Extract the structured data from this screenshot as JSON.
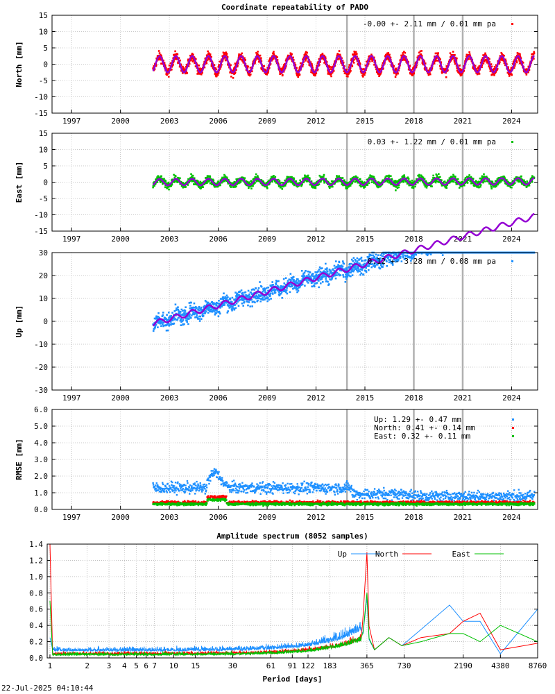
{
  "page": {
    "timestamp": "22-Jul-2025 04:10:44"
  },
  "chart_data": [
    {
      "type": "scatter",
      "title": "Coordinate repeatability of PADO",
      "ylabel": "North [mm]",
      "ylim": [
        -15,
        15
      ],
      "yticks": [
        -15,
        -10,
        -5,
        0,
        5,
        10,
        15
      ],
      "xlim": [
        1995.8,
        2025.6
      ],
      "xticks": [
        1997,
        2000,
        2003,
        2006,
        2009,
        2012,
        2015,
        2018,
        2021,
        2024
      ],
      "data_start": 2002.0,
      "data_end": 2025.4,
      "discontinuities": [
        2013.9,
        2018.0,
        2021.0
      ],
      "series": [
        {
          "name": "-0.00 +- 2.11 mm /  0.01 mm pa",
          "color": "#ff0000",
          "amplitude": 2.5,
          "noise": 1.3,
          "trend": 0.0,
          "offset": 0.0
        }
      ],
      "model_color": "#9400d3",
      "grid": true,
      "legend": "top-right"
    },
    {
      "type": "scatter",
      "title": "",
      "ylabel": "East [mm]",
      "ylim": [
        -15,
        15
      ],
      "yticks": [
        -15,
        -10,
        -5,
        0,
        5,
        10,
        15
      ],
      "xlim": [
        1995.8,
        2025.6
      ],
      "xticks": [
        1997,
        2000,
        2003,
        2006,
        2009,
        2012,
        2015,
        2018,
        2021,
        2024
      ],
      "data_start": 2002.0,
      "data_end": 2025.4,
      "discontinuities": [
        2013.9,
        2018.0,
        2021.0
      ],
      "series": [
        {
          "name": " 0.03 +- 1.22 mm /  0.01 mm pa",
          "color": "#00c000",
          "amplitude": 1.0,
          "noise": 1.0,
          "trend": 0.01,
          "offset": 0.0
        }
      ],
      "model_color": "#9400d3",
      "grid": true,
      "legend": "top-right"
    },
    {
      "type": "scatter",
      "title": "",
      "ylabel": "Up [mm]",
      "ylim": [
        -30,
        30
      ],
      "yticks": [
        -30,
        -20,
        -10,
        0,
        10,
        20,
        30
      ],
      "xlim": [
        1995.8,
        2025.6
      ],
      "xticks": [
        1997,
        2000,
        2003,
        2006,
        2009,
        2012,
        2015,
        2018,
        2021,
        2024
      ],
      "data_start": 2002.0,
      "data_end": 2025.4,
      "discontinuities": [
        2013.9,
        2018.0,
        2021.0
      ],
      "series": [
        {
          "name": " 0.12 +- 3.28 mm /  0.08 mm pa",
          "color": "#1e90ff",
          "amplitude": 1.2,
          "noise": 3.3,
          "trend": 0.08,
          "offset": -1.0
        }
      ],
      "model_color": "#9400d3",
      "grid": true,
      "legend": "top-right"
    },
    {
      "type": "scatter",
      "title": "",
      "ylabel": "RMSE [mm]",
      "ylim": [
        0,
        6
      ],
      "yticks": [
        0.0,
        1.0,
        2.0,
        3.0,
        4.0,
        5.0,
        6.0
      ],
      "ytick_labels": [
        "0.0",
        "1.0",
        "2.0",
        "3.0",
        "4.0",
        "5.0",
        "6.0"
      ],
      "xlim": [
        1995.8,
        2025.6
      ],
      "xticks": [
        1997,
        2000,
        2003,
        2006,
        2009,
        2012,
        2015,
        2018,
        2021,
        2024
      ],
      "data_start": 2002.0,
      "data_end": 2025.4,
      "discontinuities": [
        2013.9,
        2018.0,
        2021.0
      ],
      "series": [
        {
          "name": "Up:     1.29 +- 0.47 mm",
          "color": "#1e90ff",
          "level": 1.29,
          "spread": 0.47
        },
        {
          "name": "North:  0.41 +- 0.14 mm",
          "color": "#ff0000",
          "level": 0.41,
          "spread": 0.14
        },
        {
          "name": "East:   0.32 +- 0.11 mm",
          "color": "#00c000",
          "level": 0.32,
          "spread": 0.11
        }
      ],
      "grid": true,
      "legend": "top-right"
    },
    {
      "type": "line",
      "title": "Amplitude spectrum (8052 samples)",
      "xlabel": "Period [days]",
      "ylabel": "",
      "ylim": [
        0,
        1.4
      ],
      "yticks": [
        0.0,
        0.2,
        0.4,
        0.6,
        0.8,
        1.0,
        1.2,
        1.4
      ],
      "ytick_labels": [
        "0.0",
        "0.2",
        "0.4",
        "0.6",
        "0.8",
        "1.0",
        "1.2",
        "1.4"
      ],
      "xscale": "log",
      "xlim": [
        0.95,
        8760
      ],
      "xticks": [
        1,
        2,
        3,
        4,
        5,
        6,
        7,
        10,
        15,
        30,
        61,
        91,
        122,
        183,
        365,
        730,
        2190,
        4380,
        8760
      ],
      "xtick_labels": [
        "1",
        "2",
        "3",
        "4",
        "5",
        "6",
        "7",
        "10",
        "15",
        "30",
        "61",
        "91",
        "122",
        "183",
        "365",
        "730",
        "2190",
        "4380",
        "8760"
      ],
      "series": [
        {
          "name": "Up",
          "color": "#1e90ff",
          "peak_365": 0.75,
          "long_period": [
            [
              1000,
              0.35
            ],
            [
              1700,
              0.65
            ],
            [
              2190,
              0.45
            ],
            [
              3000,
              0.45
            ],
            [
              4380,
              0.05
            ],
            [
              8760,
              0.6
            ]
          ]
        },
        {
          "name": "North",
          "color": "#ff0000",
          "peak_365": 1.3,
          "long_period": [
            [
              1000,
              0.25
            ],
            [
              1700,
              0.3
            ],
            [
              2190,
              0.45
            ],
            [
              3000,
              0.55
            ],
            [
              4380,
              0.1
            ],
            [
              8760,
              0.18
            ]
          ]
        },
        {
          "name": "East",
          "color": "#00c000",
          "peak_365": 0.8,
          "long_period": [
            [
              1000,
              0.2
            ],
            [
              1700,
              0.3
            ],
            [
              2190,
              0.3
            ],
            [
              3000,
              0.2
            ],
            [
              4380,
              0.4
            ],
            [
              8760,
              0.2
            ]
          ]
        }
      ],
      "grid": true,
      "legend": "top-right"
    }
  ]
}
